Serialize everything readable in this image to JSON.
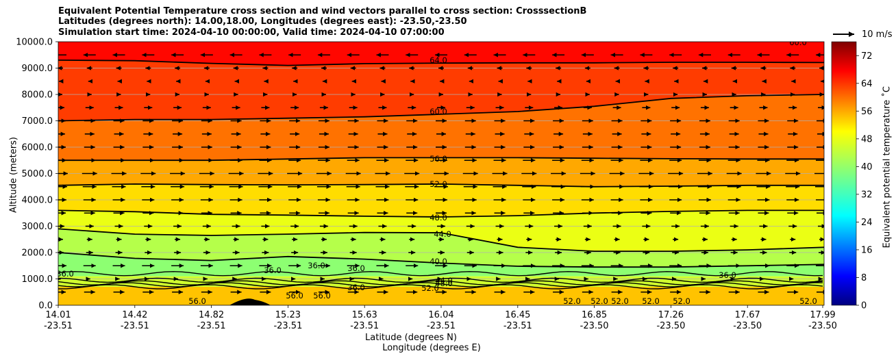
{
  "titles": {
    "line1": "Equivalent Potential Temperature cross section and wind vectors parallel to cross section: CrosssectionB",
    "line2": "Latitudes (degrees north): 14.00,18.00, Longitudes (degrees east): -23.50,-23.50",
    "line3": "Simulation start time: 2024-04-10 00:00:00, Valid time: 2024-04-10 07:00:00"
  },
  "axes": {
    "ylabel": "Altitude (meters)",
    "xlabel_lat": "Latitude (degrees N)",
    "xlabel_lon": "Longitude (degrees E)",
    "yticks": [
      "0.0",
      "1000.0",
      "2000.0",
      "3000.0",
      "4000.0",
      "5000.0",
      "6000.0",
      "7000.0",
      "8000.0",
      "9000.0",
      "10000.0"
    ],
    "xticks_lat": [
      "14.01",
      "14.42",
      "14.82",
      "15.23",
      "15.63",
      "16.04",
      "16.45",
      "16.85",
      "17.26",
      "17.67",
      "17.99"
    ],
    "xticks_lon": [
      "-23.51",
      "-23.51",
      "-23.51",
      "-23.51",
      "-23.51",
      "-23.51",
      "-23.51",
      "-23.50",
      "-23.50",
      "-23.50",
      "-23.50"
    ]
  },
  "colorbar": {
    "label": "Equivalent potential temperature ˚C",
    "ticks": [
      "0",
      "8",
      "16",
      "24",
      "32",
      "40",
      "48",
      "56",
      "64",
      "72"
    ]
  },
  "quiverkey": {
    "label": "10 m/s"
  },
  "chart_data": {
    "type": "heatmap",
    "title": "Equivalent Potential Temperature cross section and wind vectors parallel to cross section: CrosssectionB",
    "xlabel": "Latitude (degrees N) / Longitude (degrees E)",
    "ylabel": "Altitude (meters)",
    "xlim": [
      14.01,
      17.99
    ],
    "ylim": [
      0,
      10000
    ],
    "clim": [
      0,
      76
    ],
    "colormap": "jet",
    "contour_labels": [
      "64.0",
      "60.0",
      "56.0",
      "52.0",
      "48.0",
      "44.0",
      "40.0",
      "44.0",
      "48.0",
      "52.0",
      "36.0",
      "36.0",
      "36.0",
      "36.0",
      "36.0",
      "56.0",
      "56.0",
      "56.0",
      "52.0",
      "52.0",
      "52.0",
      "52.0",
      "52.0",
      "52.0",
      "36.0",
      "60.0"
    ],
    "contours": [
      {
        "level": 64,
        "heights": [
          9300,
          9280,
          9180,
          9100,
          9170,
          9190,
          9200,
          9200,
          9220,
          9220,
          9210
        ]
      },
      {
        "level": 60,
        "heights": [
          7000,
          7050,
          7050,
          7100,
          7150,
          7250,
          7350,
          7550,
          7850,
          7950,
          8000
        ]
      },
      {
        "level": 56,
        "heights": [
          5500,
          5500,
          5500,
          5550,
          5600,
          5600,
          5600,
          5580,
          5560,
          5550,
          5550
        ]
      },
      {
        "level": 52,
        "heights": [
          4550,
          4600,
          4580,
          4570,
          4580,
          4600,
          4550,
          4500,
          4520,
          4550,
          4550
        ]
      },
      {
        "level": 48,
        "heights": [
          3600,
          3550,
          3450,
          3420,
          3380,
          3350,
          3400,
          3500,
          3560,
          3600,
          3600
        ]
      },
      {
        "level": 44,
        "heights": [
          2900,
          2700,
          2650,
          2700,
          2760,
          2750,
          2200,
          2050,
          2050,
          2100,
          2200
        ]
      },
      {
        "level": 40,
        "heights": [
          2000,
          1780,
          1700,
          1850,
          1750,
          1600,
          1480,
          1450,
          1450,
          1500,
          1550
        ]
      }
    ],
    "wind_levels_m": [
      500,
      1000,
      1500,
      2000,
      2500,
      3000,
      3500,
      4000,
      4500,
      5000,
      5500,
      6000,
      6500,
      7000,
      7500,
      8000,
      8500,
      9000,
      9500
    ],
    "wind_u_ms": [
      8,
      1,
      9,
      5,
      4,
      6,
      8,
      9,
      10,
      11,
      9,
      8,
      7,
      8,
      6,
      3,
      -2,
      -4,
      -9
    ],
    "quiver_key_ms": 10
  }
}
